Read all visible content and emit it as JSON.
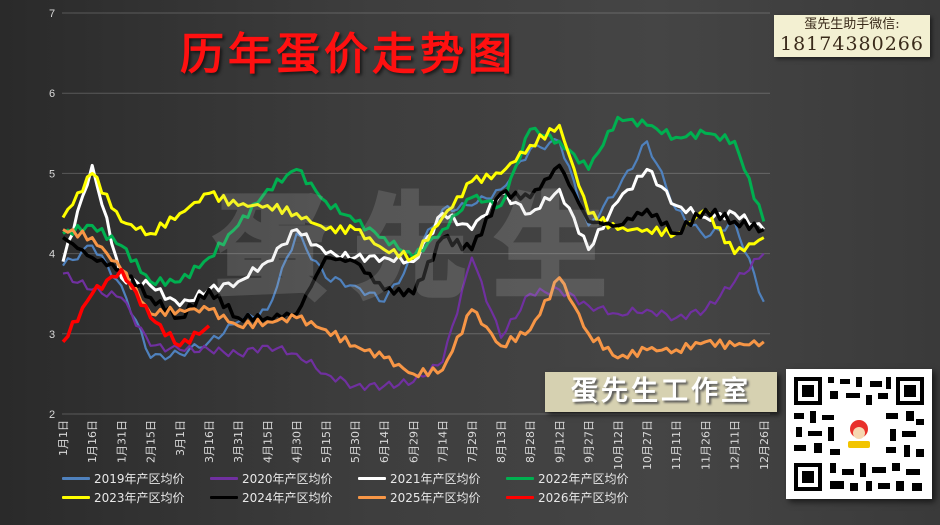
{
  "header": {
    "title": "历年蛋价走势图"
  },
  "contact": {
    "label": "蛋先生助手微信:",
    "phone": "18174380266"
  },
  "studio_banner": "蛋先生工作室",
  "watermark": "蛋先生",
  "qr_code": {
    "alt": "wechat-qr-code"
  },
  "legend": [
    {
      "name": "2019年产区均价",
      "color": "#4f81bd"
    },
    {
      "name": "2020年产区均价",
      "color": "#7030a0"
    },
    {
      "name": "2021年产区均价",
      "color": "#ffffff"
    },
    {
      "name": "2022年产区均价",
      "color": "#00b050"
    },
    {
      "name": "2023年产区均价",
      "color": "#ffff00"
    },
    {
      "name": "2024年产区均价",
      "color": "#000000"
    },
    {
      "name": "2025年产区均价",
      "color": "#f79646"
    },
    {
      "name": "2026年产区均价",
      "color": "#ff0000"
    }
  ],
  "chart_data": {
    "type": "line",
    "title": "历年蛋价走势图",
    "xlabel": "",
    "ylabel": "",
    "ylim": [
      2,
      7
    ],
    "yticks": [
      2,
      3,
      4,
      5,
      6,
      7
    ],
    "grid": true,
    "legend_position": "bottom",
    "categories": [
      "1月1日",
      "1月16日",
      "1月31日",
      "2月15日",
      "3月1日",
      "3月16日",
      "3月31日",
      "4月15日",
      "4月30日",
      "5月15日",
      "5月30日",
      "6月14日",
      "6月29日",
      "7月14日",
      "7月29日",
      "8月13日",
      "8月28日",
      "9月12日",
      "9月27日",
      "10月12日",
      "10月27日",
      "11月11日",
      "11月26日",
      "12月11日",
      "12月26日"
    ],
    "series": [
      {
        "name": "2019年产区均价",
        "color": "#4f81bd",
        "values": [
          3.85,
          4.1,
          3.6,
          2.7,
          2.75,
          2.9,
          3.15,
          3.3,
          4.25,
          3.7,
          3.6,
          3.4,
          3.95,
          4.55,
          4.6,
          4.8,
          5.3,
          5.4,
          4.35,
          4.8,
          5.4,
          4.55,
          4.2,
          4.4,
          3.4
        ]
      },
      {
        "name": "2020年产区均价",
        "color": "#7030a0",
        "values": [
          3.75,
          3.55,
          3.45,
          2.85,
          2.8,
          2.8,
          2.75,
          2.85,
          2.75,
          2.5,
          2.35,
          2.35,
          2.4,
          2.65,
          3.95,
          2.95,
          3.5,
          3.55,
          3.35,
          3.25,
          3.3,
          3.2,
          3.3,
          3.65,
          4.0
        ]
      },
      {
        "name": "2021年产区均价",
        "color": "#ffffff",
        "values": [
          3.9,
          5.1,
          3.7,
          3.6,
          3.35,
          3.55,
          3.65,
          3.9,
          4.3,
          4.0,
          3.95,
          3.95,
          3.9,
          4.5,
          4.3,
          4.75,
          4.5,
          4.8,
          4.05,
          4.65,
          5.05,
          4.6,
          4.45,
          4.5,
          4.3
        ]
      },
      {
        "name": "2022年产区均价",
        "color": "#00b050",
        "values": [
          4.25,
          4.35,
          4.1,
          3.65,
          3.65,
          3.95,
          4.35,
          4.8,
          5.05,
          4.65,
          4.4,
          4.2,
          3.95,
          4.3,
          4.7,
          4.6,
          5.55,
          5.4,
          5.05,
          5.7,
          5.6,
          5.45,
          5.5,
          5.4,
          4.4
        ]
      },
      {
        "name": "2023年产区均价",
        "color": "#ffff00",
        "values": [
          4.45,
          5.0,
          4.4,
          4.25,
          4.5,
          4.75,
          4.6,
          4.6,
          4.5,
          4.3,
          4.3,
          4.05,
          3.95,
          4.45,
          4.9,
          5.0,
          5.35,
          5.6,
          4.5,
          4.3,
          4.3,
          4.25,
          4.55,
          4.0,
          4.2
        ]
      },
      {
        "name": "2024年产区均价",
        "color": "#000000",
        "values": [
          4.2,
          3.95,
          3.8,
          3.45,
          3.2,
          3.55,
          3.2,
          3.2,
          3.25,
          3.95,
          3.9,
          3.55,
          3.5,
          4.2,
          4.05,
          4.75,
          4.7,
          5.1,
          4.4,
          4.35,
          4.55,
          4.25,
          4.55,
          4.4,
          4.3
        ]
      },
      {
        "name": "2025年产区均价",
        "color": "#f79646",
        "values": [
          4.3,
          4.2,
          3.8,
          3.25,
          3.3,
          3.3,
          3.1,
          3.15,
          3.2,
          3.05,
          2.85,
          2.7,
          2.5,
          2.55,
          3.3,
          2.85,
          3.05,
          3.7,
          3.0,
          2.7,
          2.8,
          2.8,
          2.9,
          2.85,
          2.9
        ]
      },
      {
        "name": "2026年产区均价",
        "color": "#ff0000",
        "values": [
          2.9,
          3.5,
          3.8,
          3.2,
          2.85,
          3.1,
          null,
          null,
          null,
          null,
          null,
          null,
          null,
          null,
          null,
          null,
          null,
          null,
          null,
          null,
          null,
          null,
          null,
          null,
          null
        ]
      }
    ]
  }
}
